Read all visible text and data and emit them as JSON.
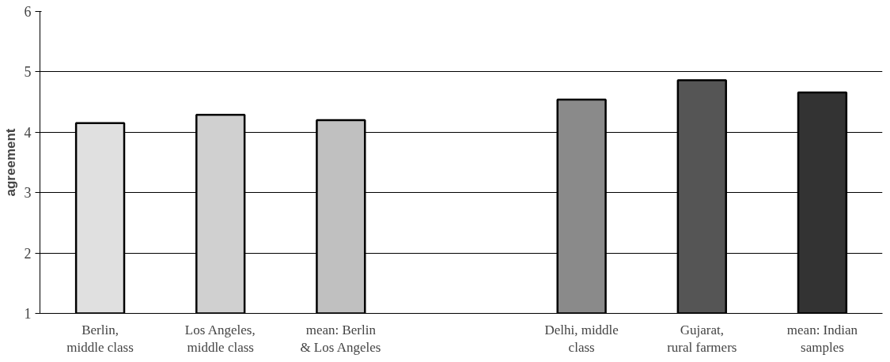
{
  "chart_data": {
    "type": "bar",
    "ylabel": "agreement",
    "categories": [
      "Berlin, middle class",
      "Los Angeles, middle class",
      "mean: Berlin & Los Angeles",
      null,
      "Delhi, middle class",
      "Gujarat, rural farmers",
      "mean: Indian samples"
    ],
    "values": [
      4.15,
      4.29,
      4.2,
      null,
      4.54,
      4.86,
      4.66
    ],
    "colors": [
      "#e0e0e0",
      "#d0d0d0",
      "#c0c0c0",
      "#ffffff",
      "#8a8a8a",
      "#555555",
      "#333333"
    ],
    "ylim": [
      1,
      6
    ],
    "yticks": [
      1,
      2,
      3,
      4,
      5,
      6
    ],
    "grid": "y"
  }
}
